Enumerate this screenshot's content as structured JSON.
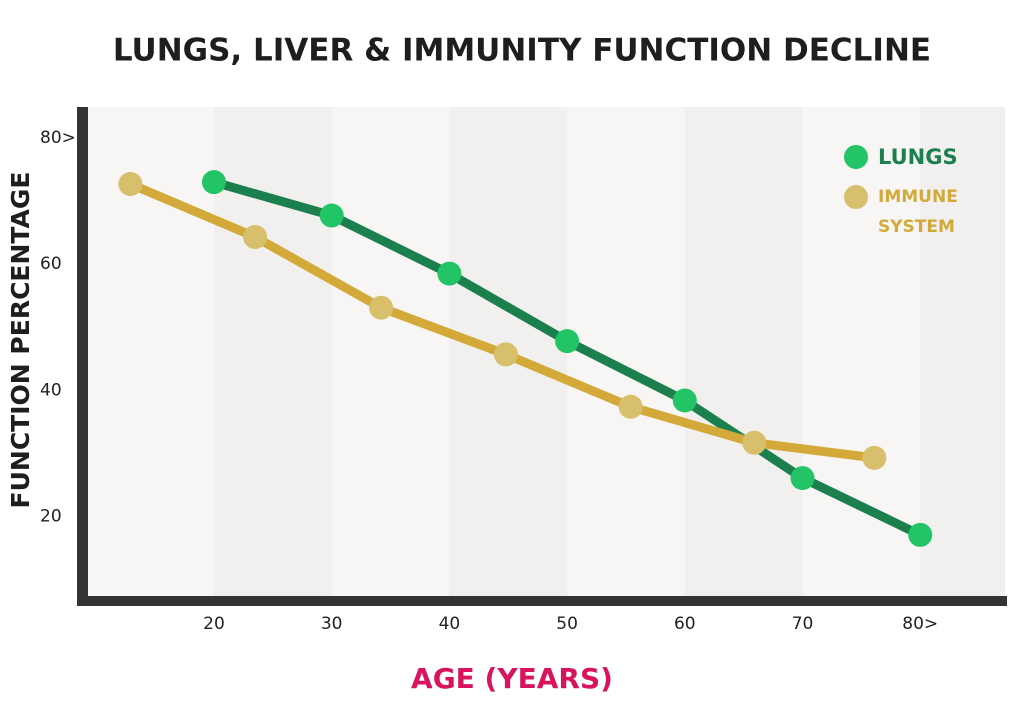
{
  "chart_data": {
    "type": "line",
    "title": "LUNGS, LIVER & IMMUNITY FUNCTION DECLINE",
    "xlabel": "AGE (YEARS)",
    "ylabel": "FUNCTION PERCENTAGE",
    "series": [
      {
        "name": "LUNGS",
        "color": "#1b7f4e",
        "marker_color": "#22c466",
        "x": [
          20,
          30,
          40,
          50,
          60,
          70,
          80
        ],
        "values": [
          73,
          67.7,
          58.5,
          47.8,
          38.4,
          26.1,
          17.1
        ]
      },
      {
        "name": "IMMUNE SYSTEM",
        "color": "#d3aa3a",
        "marker_color": "#d8bf6c",
        "x": [
          12.9,
          23.5,
          34.2,
          44.8,
          55.4,
          65.9,
          76.1
        ],
        "values": [
          72.7,
          64.3,
          53.1,
          45.7,
          37.4,
          31.7,
          29.3
        ]
      }
    ],
    "xlim": [
      9.3,
      87.2
    ],
    "xticks": [
      20,
      30,
      40,
      50,
      60,
      70,
      {
        "value": 80,
        "label": "80>"
      }
    ],
    "ylim": [
      7.1,
      84.9
    ],
    "yticks": [
      20,
      40,
      60,
      {
        "value": 80,
        "label": "80>"
      }
    ],
    "legend": "upper right"
  }
}
